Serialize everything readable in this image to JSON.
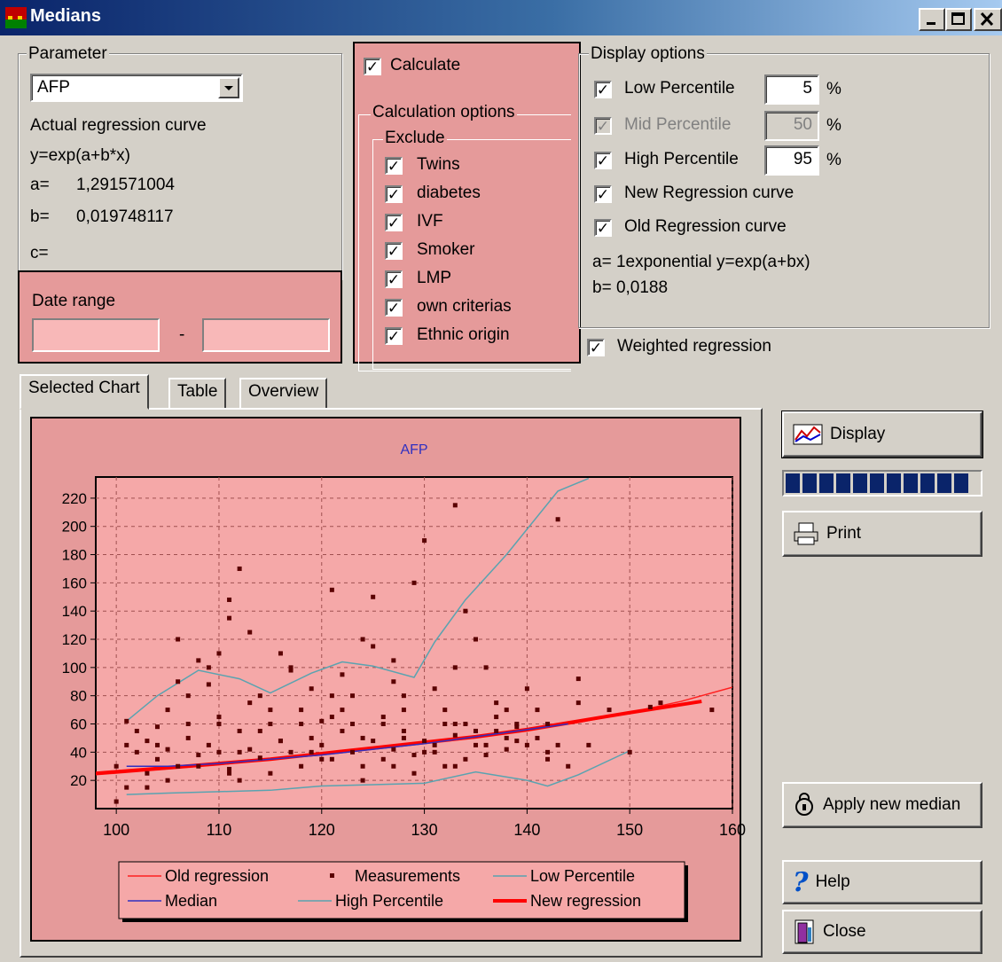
{
  "window": {
    "title": "Medians"
  },
  "parameter": {
    "group_label": "Parameter",
    "selected": "AFP",
    "curve_label": "Actual regression curve",
    "formula": "y=exp(a+b*x)",
    "a_label": "a=",
    "a_value": "1,291571004",
    "b_label": "b=",
    "b_value": "0,019748117",
    "c_label": "c=",
    "c_value": ""
  },
  "date_range": {
    "label": "Date range",
    "from": "",
    "separator": "-",
    "to": ""
  },
  "calculate": {
    "label": "Calculate",
    "options_label": "Calculation options",
    "exclude_label": "Exclude",
    "excludes": [
      "Twins",
      "diabetes",
      "IVF",
      "Smoker",
      "LMP",
      "own criterias",
      "Ethnic origin"
    ]
  },
  "display_options": {
    "group_label": "Display options",
    "low_label": "Low Percentile",
    "low_value": "5",
    "mid_label": "Mid Percentile",
    "mid_value": "50",
    "high_label": "High Percentile",
    "high_value": "95",
    "percent": "%",
    "new_curve": "New Regression curve",
    "old_curve": "Old Regression curve",
    "a_line": "a= 1exponential y=exp(a+bx)",
    "b_line": "b= 0,0188"
  },
  "weighted_label": "Weighted regression",
  "tabs": [
    "Selected Chart",
    "Table",
    "Overview"
  ],
  "buttons": {
    "display": "Display",
    "print": "Print",
    "apply": "Apply new median",
    "help": "Help",
    "close": "Close"
  },
  "progress": {
    "segments_filled": 11,
    "segments_total": 11
  },
  "colors": {
    "old_regression": "#ff2020",
    "new_regression": "#ff0000",
    "median": "#3030c0",
    "percentile": "#5aa3b0",
    "measurement": "#5a0000",
    "chart_bg": "#e59a9a",
    "plot_bg": "#f5a8a8",
    "progress": "#0a246a"
  },
  "chart_data": {
    "type": "scatter",
    "title": "AFP",
    "xlim": [
      98,
      160
    ],
    "ylim": [
      0,
      235
    ],
    "x_ticks": [
      100,
      110,
      120,
      130,
      140,
      150,
      160
    ],
    "y_ticks": [
      20,
      40,
      60,
      80,
      100,
      120,
      140,
      160,
      180,
      200,
      220
    ],
    "grid": true,
    "legend_position": "bottom",
    "legend": [
      "Old regression",
      "Measurements",
      "Low Percentile",
      "Median",
      "High Percentile",
      "New regression"
    ],
    "series": [
      {
        "name": "Old regression",
        "x": [
          98,
          105,
          110,
          115,
          120,
          125,
          130,
          135,
          140,
          145,
          150,
          155,
          160
        ],
        "y": [
          24,
          28,
          31,
          35,
          38,
          42,
          46,
          50,
          55,
          61,
          68,
          76,
          86
        ]
      },
      {
        "name": "New regression",
        "x": [
          98,
          105,
          110,
          115,
          120,
          125,
          130,
          135,
          140,
          145,
          150,
          157
        ],
        "y": [
          25,
          29,
          32,
          35,
          39,
          43,
          47,
          51,
          56,
          62,
          68,
          76
        ]
      },
      {
        "name": "Median",
        "x": [
          101,
          105,
          110,
          115,
          120,
          125,
          130,
          135,
          140,
          144
        ],
        "y": [
          30,
          30,
          32,
          35,
          38,
          42,
          46,
          51,
          56,
          60
        ]
      },
      {
        "name": "High Percentile",
        "x": [
          101,
          104,
          108,
          112,
          115,
          119,
          122,
          125,
          129,
          131,
          134,
          138,
          143,
          146
        ],
        "y": [
          62,
          80,
          98,
          92,
          82,
          96,
          104,
          101,
          93,
          118,
          148,
          180,
          225,
          234
        ]
      },
      {
        "name": "Low Percentile",
        "x": [
          101,
          105,
          110,
          115,
          120,
          125,
          130,
          135,
          140,
          142,
          145,
          150
        ],
        "y": [
          10,
          11,
          12,
          13,
          16,
          17,
          18,
          26,
          20,
          16,
          24,
          41
        ]
      },
      {
        "name": "Measurements",
        "x": [
          100,
          100,
          101,
          101,
          102,
          102,
          103,
          103,
          104,
          104,
          105,
          105,
          106,
          106,
          107,
          107,
          108,
          108,
          109,
          109,
          110,
          110,
          111,
          111,
          112,
          112,
          113,
          113,
          114,
          114,
          115,
          115,
          116,
          116,
          117,
          117,
          118,
          118,
          119,
          119,
          120,
          120,
          121,
          121,
          122,
          122,
          123,
          123,
          124,
          124,
          125,
          125,
          126,
          126,
          127,
          127,
          128,
          128,
          129,
          129,
          130,
          130,
          131,
          131,
          132,
          132,
          133,
          133,
          134,
          134,
          135,
          135,
          136,
          136,
          137,
          137,
          138,
          138,
          139,
          139,
          140,
          140,
          141,
          141,
          142,
          142,
          143,
          144,
          145,
          146,
          148,
          150,
          152,
          153,
          158,
          101,
          104,
          105,
          108,
          111,
          112,
          114,
          116,
          118,
          120,
          122,
          124,
          126,
          128,
          131,
          133,
          135,
          137,
          139,
          143,
          106,
          110,
          113,
          117,
          121,
          123,
          125,
          127,
          129,
          132,
          134,
          136,
          138,
          142,
          103,
          107,
          109,
          111,
          115,
          119,
          127,
          133,
          110,
          112,
          121,
          124,
          128,
          130,
          133,
          135,
          145
        ],
        "y": [
          5,
          30,
          62,
          45,
          40,
          55,
          25,
          48,
          35,
          58,
          70,
          42,
          120,
          30,
          60,
          50,
          105,
          38,
          88,
          45,
          40,
          65,
          148,
          28,
          170,
          55,
          42,
          75,
          80,
          36,
          60,
          25,
          110,
          48,
          98,
          40,
          70,
          30,
          85,
          50,
          45,
          62,
          155,
          35,
          95,
          55,
          40,
          80,
          120,
          30,
          150,
          48,
          60,
          35,
          105,
          42,
          70,
          55,
          160,
          38,
          190,
          48,
          85,
          40,
          70,
          30,
          215,
          52,
          35,
          60,
          120,
          45,
          100,
          38,
          55,
          65,
          42,
          70,
          60,
          48,
          85,
          45,
          50,
          70,
          40,
          60,
          205,
          30,
          75,
          45,
          70,
          40,
          72,
          75,
          70,
          15,
          45,
          20,
          30,
          25,
          40,
          55,
          48,
          60,
          35,
          70,
          20,
          65,
          50,
          45,
          60,
          55,
          75,
          58,
          45,
          90,
          110,
          125,
          100,
          80,
          60,
          115,
          90,
          25,
          60,
          140,
          45,
          50,
          35,
          15,
          80,
          100,
          135,
          70,
          40,
          30,
          30,
          60,
          20,
          65,
          50,
          80,
          40,
          100,
          55,
          92
        ]
      }
    ]
  }
}
